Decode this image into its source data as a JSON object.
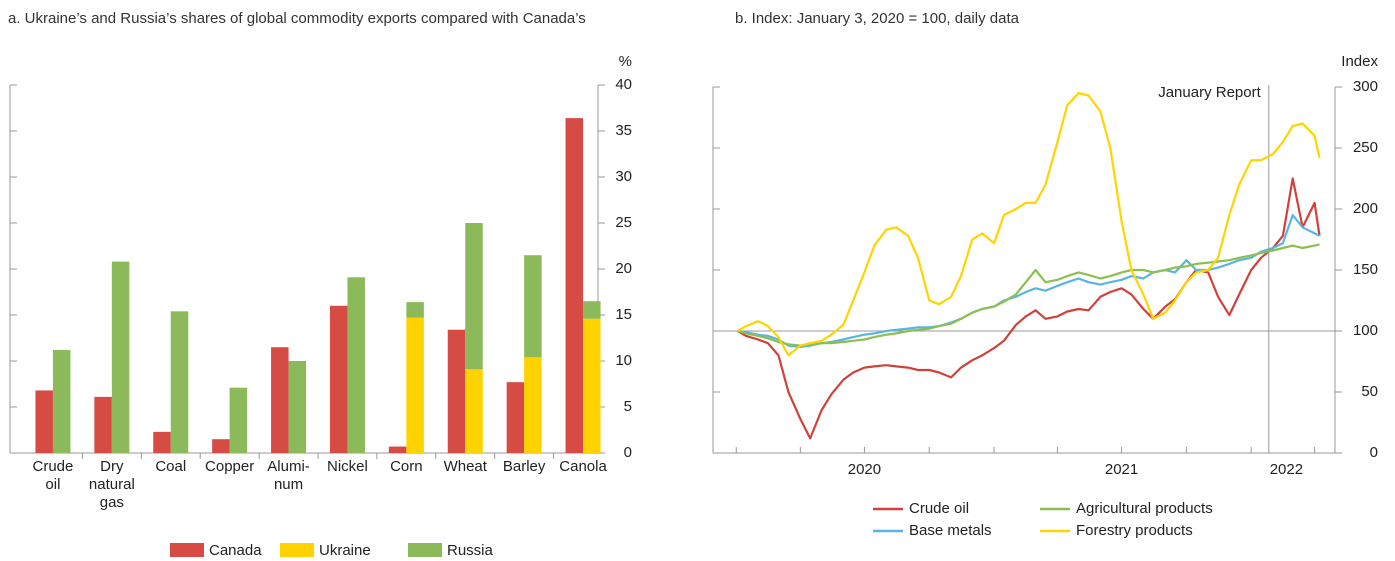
{
  "chart_data": [
    {
      "type": "bar",
      "title": "a. Ukraine’s and Russia’s shares of global commodity exports compared with Canada’s",
      "y_label": "%",
      "categories": [
        "Crude\noil",
        "Dry\nnatural\ngas",
        "Coal",
        "Copper",
        "Alumi-\nnum",
        "Nickel",
        "Corn",
        "Wheat",
        "Barley",
        "Canola"
      ],
      "series": [
        {
          "name": "Canada",
          "color": "#d64b43",
          "stack": 0,
          "values": [
            6.8,
            6.1,
            2.3,
            1.5,
            11.5,
            16.0,
            0.7,
            13.4,
            7.7,
            36.4
          ]
        },
        {
          "name": "Ukraine",
          "color": "#ffd200",
          "stack": 1,
          "values": [
            null,
            null,
            null,
            null,
            null,
            null,
            14.7,
            9.1,
            10.4,
            14.6
          ]
        },
        {
          "name": "Russia",
          "color": "#8cba5a",
          "stack": 1,
          "values": [
            11.2,
            20.8,
            15.4,
            7.1,
            10.0,
            19.1,
            1.7,
            15.9,
            11.1,
            1.9
          ]
        }
      ],
      "ylim": [
        0,
        40
      ],
      "yticks": [
        0,
        5,
        10,
        15,
        20,
        25,
        30,
        35,
        40
      ],
      "legend": "bottom"
    },
    {
      "type": "line",
      "title": "b. Index: January 3, 2020 = 100, daily data",
      "y_label": "Index",
      "x": [
        "2020-01-03",
        "2020-01-15",
        "2020-02-01",
        "2020-02-15",
        "2020-03-01",
        "2020-03-15",
        "2020-04-01",
        "2020-04-15",
        "2020-05-01",
        "2020-05-15",
        "2020-06-01",
        "2020-06-15",
        "2020-07-01",
        "2020-07-15",
        "2020-08-01",
        "2020-08-15",
        "2020-09-01",
        "2020-09-15",
        "2020-10-01",
        "2020-10-15",
        "2020-11-01",
        "2020-11-15",
        "2020-12-01",
        "2020-12-15",
        "2021-01-01",
        "2021-01-15",
        "2021-02-01",
        "2021-02-15",
        "2021-03-01",
        "2021-03-15",
        "2021-04-01",
        "2021-04-15",
        "2021-05-01",
        "2021-05-15",
        "2021-06-01",
        "2021-06-15",
        "2021-07-01",
        "2021-07-15",
        "2021-08-01",
        "2021-08-15",
        "2021-09-01",
        "2021-09-15",
        "2021-10-01",
        "2021-10-15",
        "2021-11-01",
        "2021-11-15",
        "2021-12-01",
        "2021-12-15",
        "2022-01-01",
        "2022-01-15",
        "2022-02-01",
        "2022-02-15",
        "2022-03-01",
        "2022-03-15",
        "2022-04-01",
        "2022-04-08"
      ],
      "series": [
        {
          "name": "Crude oil",
          "color": "#d1413b",
          "values": [
            100,
            96,
            93,
            90,
            80,
            50,
            28,
            12,
            35,
            48,
            60,
            66,
            70,
            71,
            72,
            71,
            70,
            68,
            68,
            66,
            62,
            70,
            76,
            80,
            86,
            92,
            105,
            112,
            117,
            110,
            112,
            116,
            118,
            117,
            128,
            132,
            135,
            130,
            118,
            110,
            120,
            126,
            140,
            150,
            148,
            128,
            113,
            130,
            150,
            160,
            168,
            178,
            225,
            185,
            205,
            178
          ]
        },
        {
          "name": "Base metals",
          "color": "#5ab4e4",
          "values": [
            100,
            99,
            97,
            96,
            93,
            88,
            87,
            88,
            90,
            91,
            93,
            95,
            97,
            98,
            100,
            101,
            102,
            103,
            103,
            104,
            107,
            110,
            115,
            118,
            120,
            125,
            128,
            132,
            135,
            133,
            137,
            140,
            143,
            140,
            138,
            140,
            142,
            145,
            143,
            148,
            150,
            148,
            158,
            150,
            150,
            152,
            155,
            158,
            160,
            165,
            168,
            172,
            195,
            185,
            180,
            178
          ]
        },
        {
          "name": "Agricultural products",
          "color": "#8cbf4f",
          "values": [
            100,
            98,
            96,
            94,
            91,
            89,
            88,
            89,
            90,
            90,
            91,
            92,
            93,
            95,
            97,
            98,
            100,
            101,
            102,
            104,
            106,
            110,
            115,
            118,
            120,
            124,
            130,
            140,
            150,
            140,
            142,
            145,
            148,
            146,
            143,
            145,
            148,
            150,
            150,
            148,
            150,
            152,
            153,
            155,
            156,
            157,
            158,
            160,
            162,
            164,
            166,
            168,
            170,
            168,
            170,
            171
          ]
        },
        {
          "name": "Forestry products",
          "color": "#ffd400",
          "values": [
            100,
            104,
            108,
            104,
            95,
            80,
            88,
            90,
            92,
            97,
            105,
            125,
            148,
            170,
            183,
            185,
            178,
            160,
            125,
            122,
            128,
            145,
            175,
            180,
            172,
            195,
            200,
            205,
            205,
            220,
            255,
            285,
            295,
            293,
            280,
            250,
            190,
            150,
            130,
            110,
            115,
            125,
            140,
            148,
            150,
            160,
            195,
            220,
            240,
            240,
            245,
            255,
            268,
            270,
            260,
            242
          ]
        }
      ],
      "xlim": [
        "2019-11-29",
        "2022-04-30"
      ],
      "xticks": [
        {
          "value": "2020-07-01",
          "label": "2020"
        },
        {
          "value": "2021-07-01",
          "label": "2021"
        },
        {
          "value": "2022-02-20",
          "label": "2022"
        }
      ],
      "xminorticks": [
        "2020-01-01",
        "2020-04-01",
        "2020-07-01",
        "2020-10-01",
        "2021-01-01",
        "2021-04-01",
        "2021-07-01",
        "2021-10-01",
        "2022-01-01",
        "2022-04-01"
      ],
      "ylim": [
        0,
        300
      ],
      "yticks": [
        0,
        50,
        100,
        150,
        200,
        250,
        300
      ],
      "reference_line": 100,
      "annotations": [
        {
          "text": "January Report",
          "x": "2022-01-26"
        }
      ],
      "legend": "bottom"
    }
  ]
}
